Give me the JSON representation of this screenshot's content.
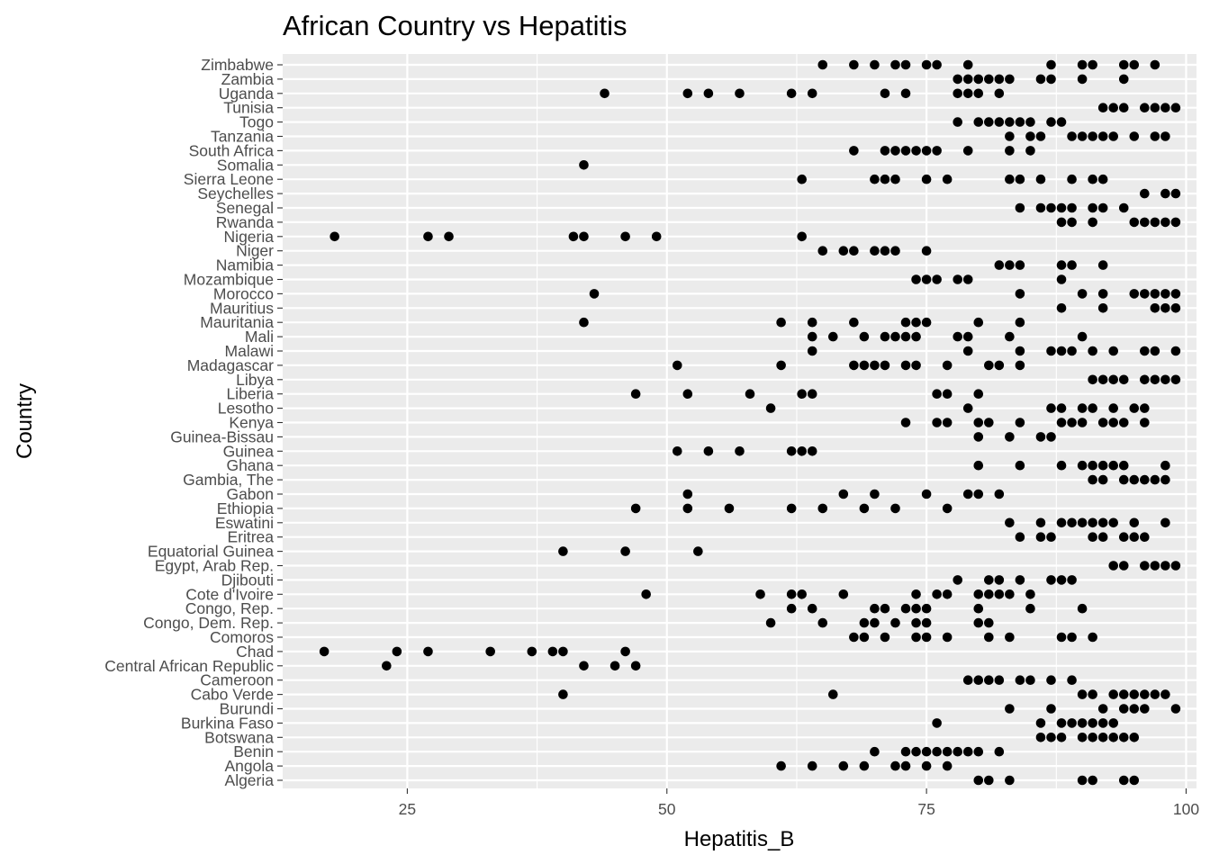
{
  "chart_data": {
    "type": "scatter",
    "title": "African Country vs Hepatitis",
    "xlabel": "Hepatitis_B",
    "ylabel": "Country",
    "xlim": [
      13,
      101
    ],
    "x_ticks": [
      25,
      50,
      75,
      100
    ],
    "grid": true,
    "legend": "none",
    "colors": {
      "panel": "#ebebeb",
      "grid": "#ffffff",
      "point": "#000000",
      "tick_text": "#4d4d4d"
    },
    "categories": [
      "Algeria",
      "Angola",
      "Benin",
      "Botswana",
      "Burkina Faso",
      "Burundi",
      "Cabo Verde",
      "Cameroon",
      "Central African Republic",
      "Chad",
      "Comoros",
      "Congo, Dem. Rep.",
      "Congo, Rep.",
      "Cote d'Ivoire",
      "Djibouti",
      "Egypt, Arab Rep.",
      "Equatorial Guinea",
      "Eritrea",
      "Eswatini",
      "Ethiopia",
      "Gabon",
      "Gambia, The",
      "Ghana",
      "Guinea",
      "Guinea-Bissau",
      "Kenya",
      "Lesotho",
      "Liberia",
      "Libya",
      "Madagascar",
      "Malawi",
      "Mali",
      "Mauritania",
      "Mauritius",
      "Morocco",
      "Mozambique",
      "Namibia",
      "Niger",
      "Nigeria",
      "Rwanda",
      "Senegal",
      "Seychelles",
      "Sierra Leone",
      "Somalia",
      "South Africa",
      "Tanzania",
      "Togo",
      "Tunisia",
      "Uganda",
      "Zambia",
      "Zimbabwe"
    ],
    "points": {
      "Algeria": [
        80,
        81,
        83,
        90,
        91,
        94,
        95
      ],
      "Angola": [
        61,
        64,
        67,
        69,
        72,
        73,
        75,
        77
      ],
      "Benin": [
        70,
        73,
        74,
        75,
        76,
        77,
        78,
        79,
        80,
        82
      ],
      "Botswana": [
        86,
        87,
        88,
        90,
        91,
        92,
        93,
        94,
        95
      ],
      "Burkina Faso": [
        76,
        86,
        88,
        89,
        90,
        91,
        92,
        93
      ],
      "Burundi": [
        83,
        87,
        92,
        94,
        95,
        96,
        99
      ],
      "Cabo Verde": [
        40,
        66,
        90,
        91,
        93,
        94,
        95,
        96,
        97,
        98
      ],
      "Cameroon": [
        79,
        80,
        81,
        82,
        84,
        85,
        87,
        89
      ],
      "Central African Republic": [
        23,
        42,
        45,
        47
      ],
      "Chad": [
        17,
        24,
        27,
        33,
        37,
        39,
        40,
        46
      ],
      "Comoros": [
        68,
        69,
        71,
        74,
        75,
        77,
        81,
        83,
        88,
        89,
        91
      ],
      "Congo, Dem. Rep.": [
        60,
        65,
        69,
        70,
        72,
        74,
        75,
        80,
        81
      ],
      "Congo, Rep.": [
        62,
        64,
        70,
        71,
        73,
        74,
        75,
        80,
        85,
        90
      ],
      "Cote d'Ivoire": [
        48,
        59,
        62,
        63,
        67,
        74,
        76,
        77,
        80,
        81,
        82,
        83,
        85
      ],
      "Djibouti": [
        78,
        81,
        82,
        84,
        87,
        88,
        89
      ],
      "Egypt, Arab Rep.": [
        93,
        94,
        96,
        97,
        98,
        99
      ],
      "Equatorial Guinea": [
        40,
        46,
        53
      ],
      "Eritrea": [
        84,
        86,
        87,
        91,
        92,
        94,
        95,
        96
      ],
      "Eswatini": [
        83,
        86,
        88,
        89,
        90,
        91,
        92,
        93,
        95,
        98
      ],
      "Ethiopia": [
        47,
        52,
        56,
        62,
        65,
        69,
        72,
        77
      ],
      "Gabon": [
        52,
        67,
        70,
        75,
        79,
        80,
        82
      ],
      "Gambia, The": [
        91,
        92,
        94,
        95,
        96,
        97,
        98
      ],
      "Ghana": [
        80,
        84,
        88,
        90,
        91,
        92,
        93,
        94,
        98
      ],
      "Guinea": [
        51,
        54,
        57,
        62,
        63,
        64
      ],
      "Guinea-Bissau": [
        80,
        83,
        86,
        87
      ],
      "Kenya": [
        73,
        76,
        77,
        80,
        81,
        84,
        88,
        89,
        90,
        92,
        93,
        94,
        96
      ],
      "Lesotho": [
        60,
        79,
        87,
        88,
        90,
        91,
        93,
        95,
        96
      ],
      "Liberia": [
        47,
        52,
        58,
        63,
        64,
        76,
        77,
        80
      ],
      "Libya": [
        91,
        92,
        93,
        94,
        96,
        97,
        98,
        99
      ],
      "Madagascar": [
        51,
        61,
        68,
        69,
        70,
        71,
        73,
        74,
        77,
        81,
        82,
        84
      ],
      "Malawi": [
        64,
        79,
        84,
        87,
        88,
        89,
        91,
        93,
        96,
        97,
        99
      ],
      "Mali": [
        64,
        66,
        69,
        71,
        72,
        73,
        74,
        78,
        79,
        83,
        90
      ],
      "Mauritania": [
        42,
        61,
        64,
        68,
        73,
        74,
        75,
        80,
        84
      ],
      "Mauritius": [
        88,
        92,
        97,
        98,
        99
      ],
      "Morocco": [
        43,
        84,
        90,
        92,
        95,
        96,
        97,
        98,
        99
      ],
      "Mozambique": [
        74,
        75,
        76,
        78,
        79,
        88
      ],
      "Namibia": [
        82,
        83,
        84,
        88,
        89,
        92
      ],
      "Niger": [
        65,
        67,
        68,
        70,
        71,
        72,
        75
      ],
      "Nigeria": [
        18,
        27,
        29,
        41,
        42,
        46,
        49,
        63
      ],
      "Rwanda": [
        88,
        89,
        91,
        95,
        96,
        97,
        98,
        99
      ],
      "Senegal": [
        84,
        86,
        87,
        88,
        89,
        91,
        92,
        94
      ],
      "Seychelles": [
        96,
        98,
        99
      ],
      "Sierra Leone": [
        63,
        70,
        71,
        72,
        75,
        77,
        83,
        84,
        86,
        89,
        91,
        92
      ],
      "Somalia": [
        42
      ],
      "South Africa": [
        68,
        71,
        72,
        73,
        74,
        75,
        76,
        79,
        83,
        85
      ],
      "Tanzania": [
        83,
        85,
        86,
        89,
        90,
        91,
        92,
        93,
        95,
        97,
        98
      ],
      "Togo": [
        78,
        80,
        81,
        82,
        83,
        84,
        85,
        87,
        88
      ],
      "Tunisia": [
        92,
        93,
        94,
        96,
        97,
        98,
        99
      ],
      "Uganda": [
        44,
        52,
        54,
        57,
        62,
        64,
        71,
        73,
        78,
        79,
        80,
        82
      ],
      "Zambia": [
        78,
        79,
        80,
        81,
        82,
        83,
        86,
        87,
        90,
        94
      ],
      "Zimbabwe": [
        65,
        68,
        70,
        72,
        73,
        75,
        76,
        79,
        87,
        90,
        91,
        94,
        95,
        97
      ]
    }
  }
}
